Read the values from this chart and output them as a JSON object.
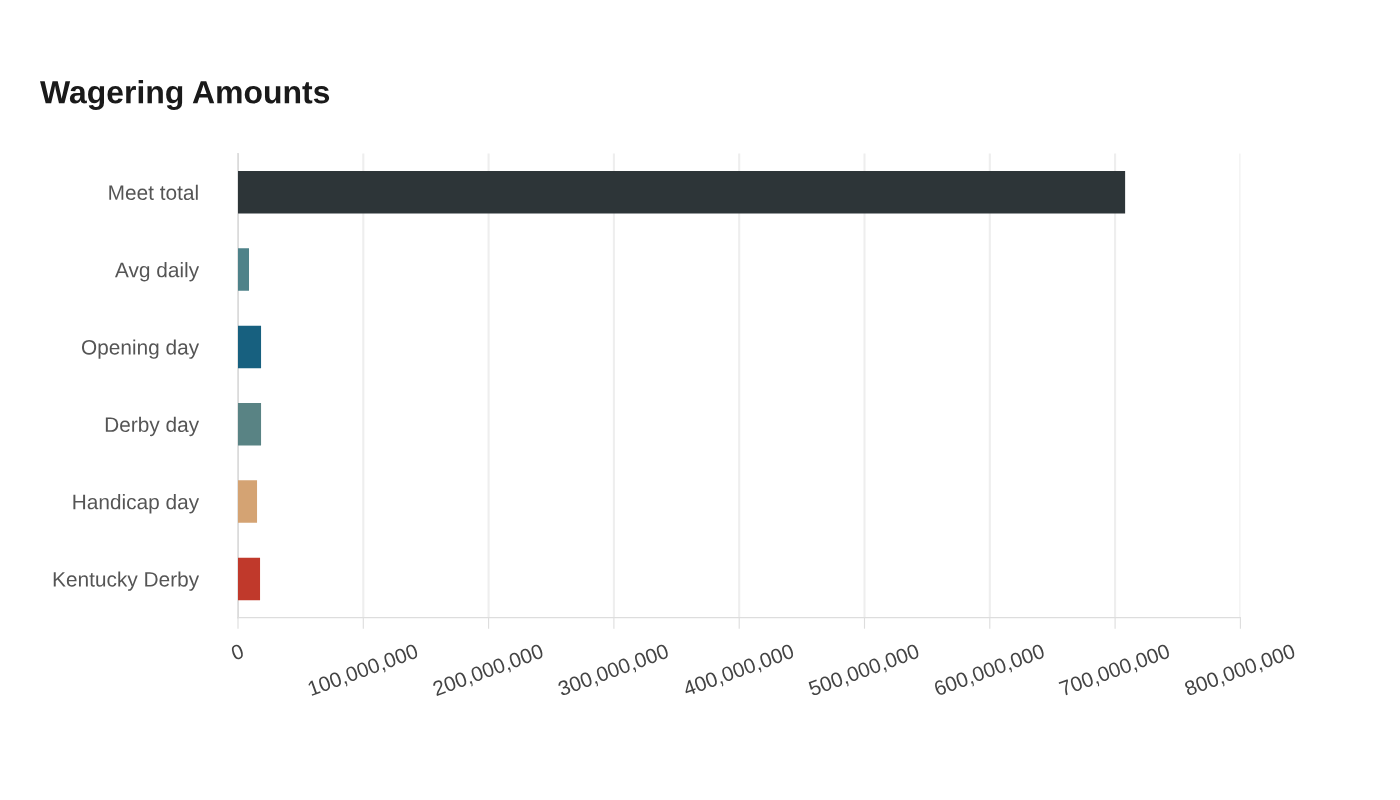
{
  "chart_data": {
    "type": "bar",
    "orientation": "horizontal",
    "title": "Wagering Amounts",
    "categories": [
      "Meet total",
      "Avg daily",
      "Opening day",
      "Derby day",
      "Handicap day",
      "Kentucky Derby"
    ],
    "values": [
      708000000,
      8800000,
      18400000,
      18400000,
      15200000,
      17600000
    ],
    "colors": [
      "#2d3538",
      "#4e8289",
      "#17607f",
      "#598384",
      "#d4a373",
      "#c0392b"
    ],
    "xlim": [
      0,
      800000000
    ],
    "xticks": [
      0,
      {
        "value": 100000000,
        "label": "100,000,000"
      },
      {
        "value": 200000000,
        "label": "200,000,000"
      },
      {
        "value": 300000000,
        "label": "300,000,000"
      },
      {
        "value": 400000000,
        "label": "400,000,000"
      },
      {
        "value": 500000000,
        "label": "500,000,000"
      },
      {
        "value": 600000000,
        "label": "600,000,000"
      },
      {
        "value": 700000000,
        "label": "700,000,000"
      },
      {
        "value": 800000000,
        "label": "800,000,000"
      }
    ],
    "grid": "x",
    "legend": false
  }
}
